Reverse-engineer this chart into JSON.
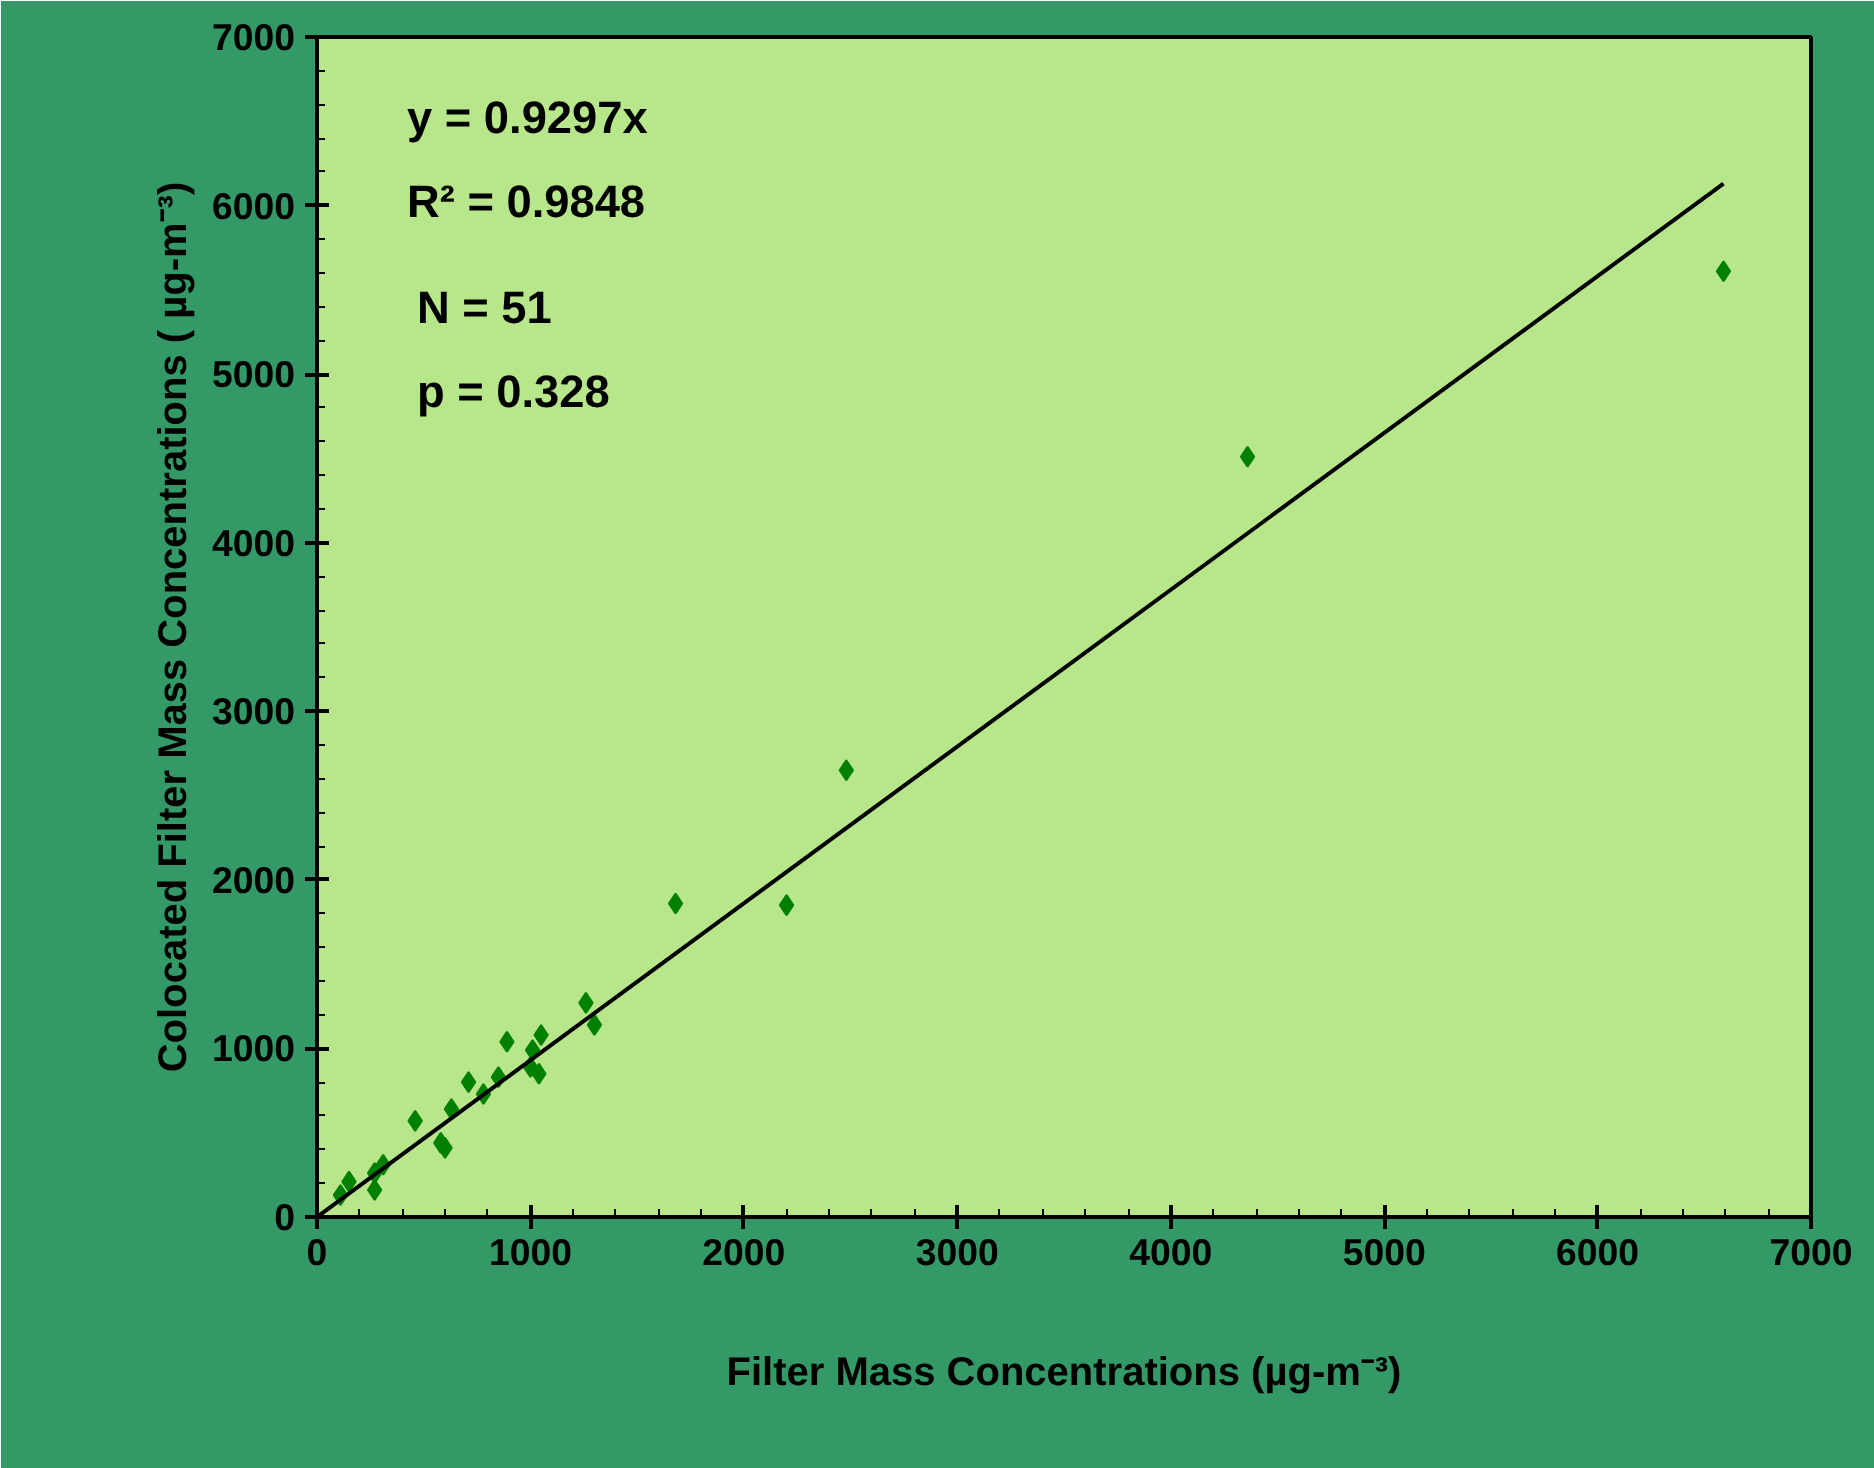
{
  "chart_data": {
    "type": "scatter",
    "xlabel": "Filter Mass Concentrations (µg-m⁻³)",
    "ylabel": "Colocated Filter Mass Concentrations ( µg-m⁻³)",
    "annotations": [
      "y = 0.9297x",
      "R² = 0.9848",
      "N = 51",
      "p = 0.328"
    ],
    "xlim": [
      0,
      7000
    ],
    "ylim": [
      0,
      7000
    ],
    "xticks": [
      0,
      1000,
      2000,
      3000,
      4000,
      5000,
      6000,
      7000
    ],
    "yticks": [
      0,
      1000,
      2000,
      3000,
      4000,
      5000,
      6000,
      7000
    ],
    "grid": false,
    "series": [
      {
        "color": "#008000",
        "marker": "diamond",
        "x": [
          6590,
          4360,
          2480,
          1680,
          2200,
          1260,
          1300,
          1050,
          1010,
          1000,
          1040,
          890,
          850,
          780,
          710,
          640,
          630,
          460,
          580,
          600,
          270,
          270,
          310,
          150,
          110
        ],
        "values": [
          5610,
          4510,
          2650,
          1860,
          1850,
          1270,
          1140,
          1080,
          990,
          890,
          850,
          1040,
          830,
          730,
          800,
          null,
          640,
          570,
          440,
          410,
          260,
          160,
          310,
          210,
          130
        ]
      },
      {
        "type": "line",
        "color": "#000000",
        "x": [
          0,
          6590
        ],
        "values": [
          0,
          6130
        ]
      }
    ]
  }
}
